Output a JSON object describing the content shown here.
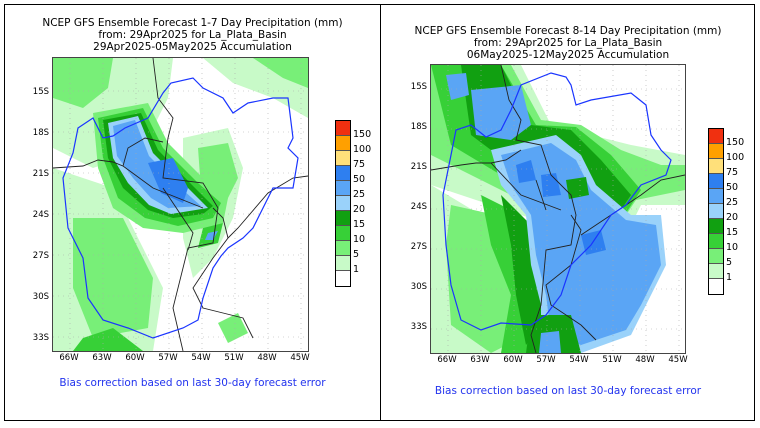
{
  "panels": [
    {
      "title_line1": "NCEP GFS Ensemble Forecast 1-7 Day Precipitation (mm)",
      "title_line2": "from: 29Apr2025   for La_Plata_Basin",
      "title_line3": "29Apr2025-05May2025 Accumulation",
      "bias_note": "Bias correction based on last 30-day forecast error"
    },
    {
      "title_line1": "NCEP GFS Ensemble Forecast 8-14 Day Precipitation (mm)",
      "title_line2": "from: 29Apr2025   for La_Plata_Basin",
      "title_line3": "06May2025-12May2025 Accumulation",
      "bias_note": "Bias correction based on last 30-day forecast error"
    }
  ],
  "axes": {
    "lat_labels": [
      "15S",
      "18S",
      "21S",
      "24S",
      "27S",
      "30S",
      "33S"
    ],
    "lon_labels": [
      "66W",
      "63W",
      "60W",
      "57W",
      "54W",
      "51W",
      "48W",
      "45W"
    ]
  },
  "legend": {
    "labels": [
      "150",
      "100",
      "75",
      "50",
      "25",
      "20",
      "15",
      "10",
      "5",
      "1"
    ],
    "colors": [
      "#f03010",
      "#ffa000",
      "#ffe07a",
      "#2e7ff0",
      "#5aa5f5",
      "#9ad2fa",
      "#11a011",
      "#37d037",
      "#78ef78",
      "#c8fac8",
      "#ffffff"
    ]
  },
  "colors": {
    "basin_outline": "#1a35ff",
    "country_border": "#222222",
    "bias_text": "#2233ee"
  }
}
